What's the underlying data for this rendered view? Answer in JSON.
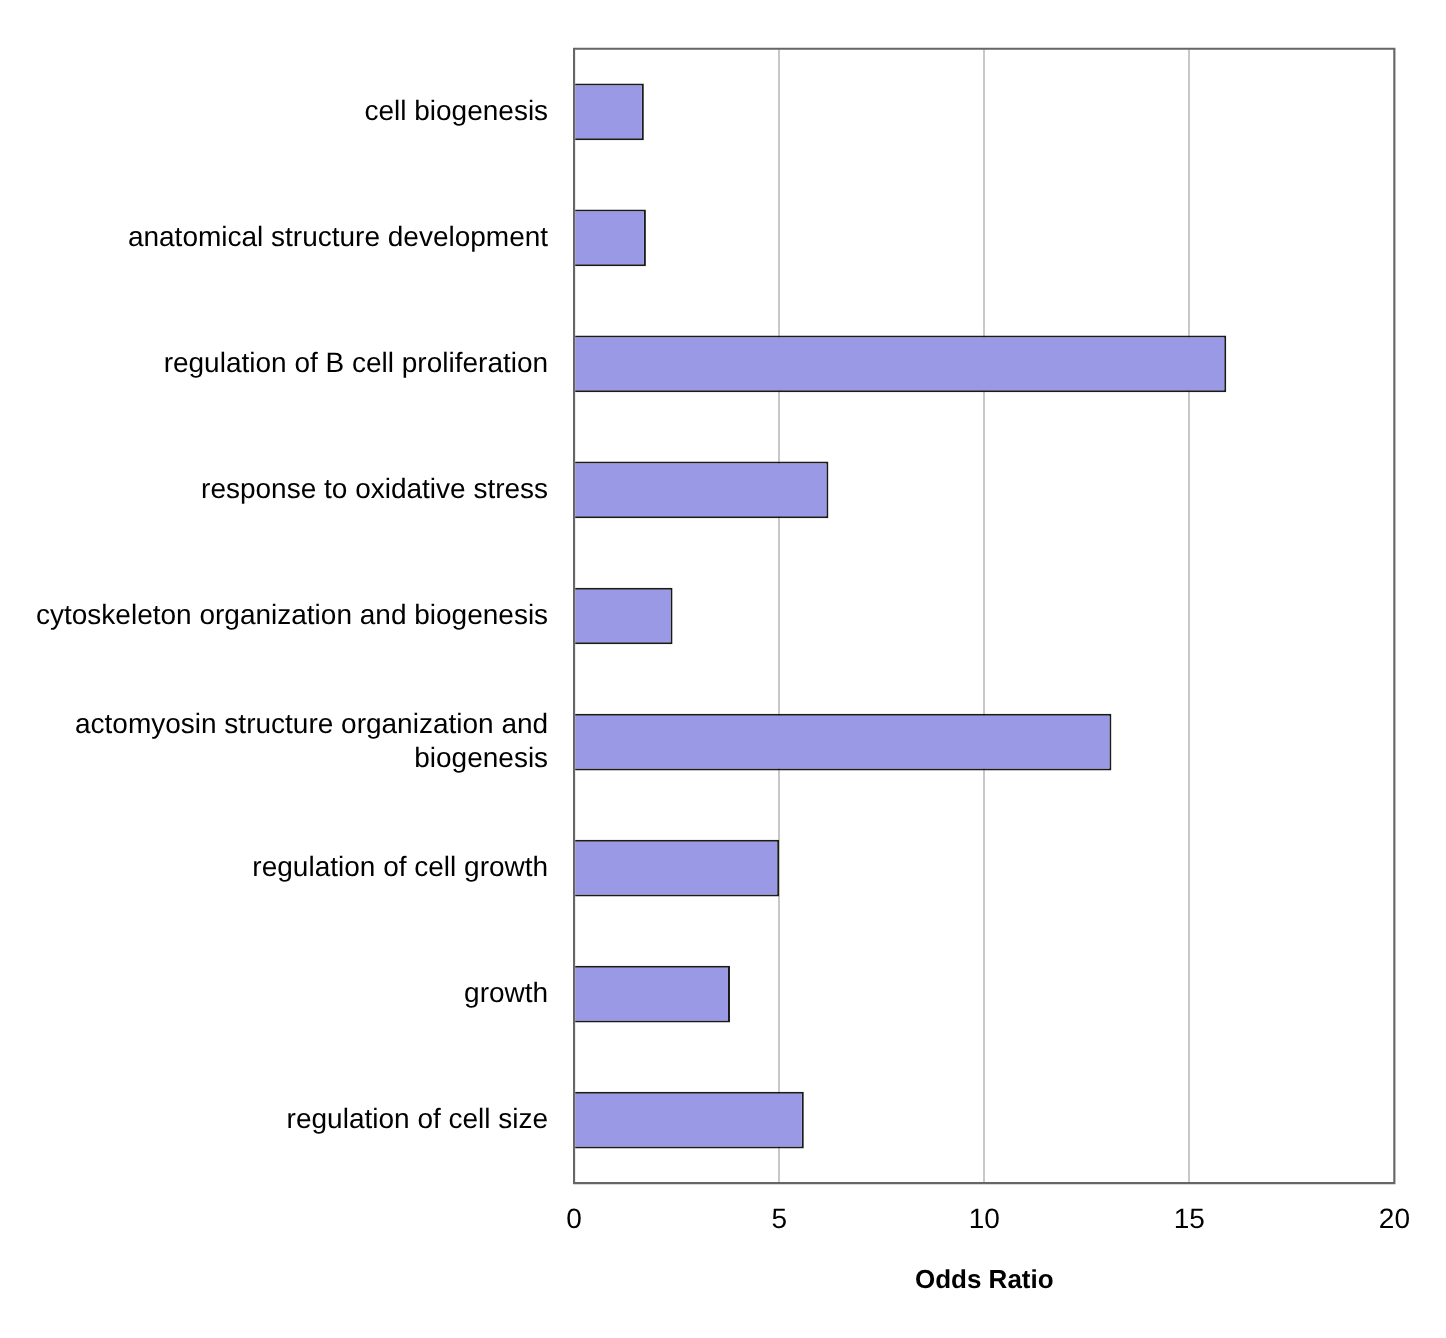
{
  "chart_data": {
    "type": "bar",
    "orientation": "horizontal",
    "xlabel": "Odds Ratio",
    "categories": [
      "cell biogenesis",
      "anatomical structure development",
      "regulation of B cell proliferation",
      "response to oxidative stress",
      "cytoskeleton organization and biogenesis",
      "actomyosin structure organization and biogenesis",
      "regulation of cell growth",
      "growth",
      "regulation of cell size"
    ],
    "values": [
      1.7,
      1.75,
      15.9,
      6.2,
      2.4,
      13.1,
      5.0,
      3.8,
      5.6
    ],
    "color": "#9999e6",
    "xlim": [
      0,
      20
    ],
    "xticks": [
      0,
      5,
      10,
      15,
      20
    ],
    "grid": "x",
    "legend": false
  }
}
